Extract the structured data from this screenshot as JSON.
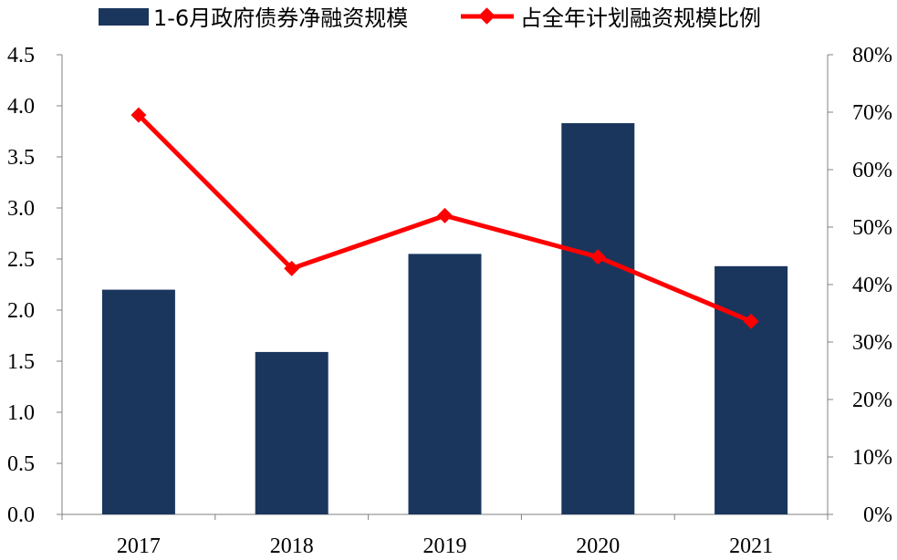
{
  "chart_data": {
    "type": "bar",
    "categories": [
      "2017",
      "2018",
      "2019",
      "2020",
      "2021"
    ],
    "series": [
      {
        "name": "1-6月政府债券净融资规模",
        "type": "bar",
        "axis": "left",
        "color": "#1b365d",
        "values": [
          2.2,
          1.59,
          2.55,
          3.83,
          2.43
        ]
      },
      {
        "name": "占全年计划融资规模比例",
        "type": "line",
        "axis": "right",
        "color": "#ff0000",
        "marker": "diamond",
        "values": [
          0.695,
          0.428,
          0.52,
          0.448,
          0.336
        ]
      }
    ],
    "left_axis": {
      "min": 0,
      "max": 4.5,
      "ticks": [
        "0.0",
        "0.5",
        "1.0",
        "1.5",
        "2.0",
        "2.5",
        "3.0",
        "3.5",
        "4.0",
        "4.5"
      ]
    },
    "right_axis": {
      "min": 0,
      "max": 0.8,
      "ticks": [
        "0%",
        "10%",
        "20%",
        "30%",
        "40%",
        "50%",
        "60%",
        "70%",
        "80%"
      ]
    },
    "grid": false,
    "legend_position": "top"
  }
}
